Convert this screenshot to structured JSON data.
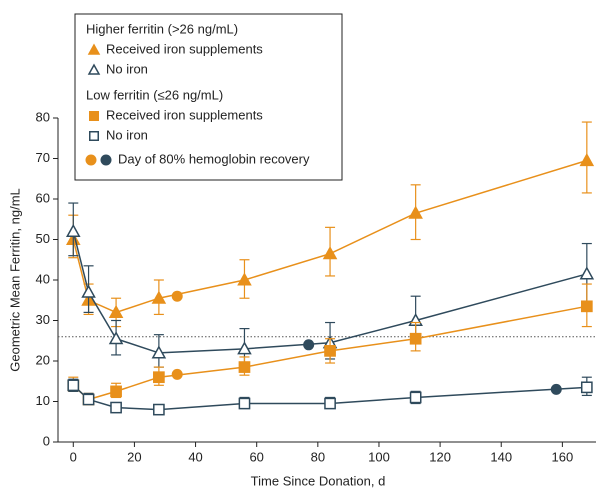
{
  "chart_data": {
    "type": "line",
    "xlabel": "Time Since Donation, d",
    "ylabel": "Geometric Mean Ferritin, ng/mL",
    "x": [
      0,
      5,
      14,
      28,
      56,
      84,
      112,
      168
    ],
    "xlim": [
      -5,
      171
    ],
    "xticks": [
      0,
      20,
      40,
      60,
      80,
      100,
      120,
      140,
      160
    ],
    "ylim": [
      0,
      80
    ],
    "yticks": [
      0,
      10,
      20,
      30,
      40,
      50,
      60,
      70,
      80
    ],
    "reference_line": 26,
    "groups": [
      {
        "title": "Higher ferritin (>26 ng/mL)",
        "series": [
          {
            "name": "Received iron supplements",
            "color": "#e8901b",
            "marker": "triangle",
            "filled": true,
            "values": [
              50,
              35,
              32,
              35.5,
              40,
              46.5,
              56.5,
              69.5
            ],
            "lower": [
              45.5,
              31.5,
              28.5,
              31.5,
              35.5,
              41,
              50,
              61.5
            ],
            "upper": [
              56,
              39,
              35.5,
              40,
              45,
              53,
              63.5,
              79
            ]
          },
          {
            "name": "No iron",
            "color": "#2f4a5c",
            "marker": "triangle",
            "filled": false,
            "values": [
              52,
              37,
              25.5,
              22,
              23,
              24.5,
              30,
              41.5
            ],
            "lower": [
              46,
              32,
              21.5,
              18.5,
              19.5,
              20.5,
              24.5,
              34.5
            ],
            "upper": [
              59,
              43.5,
              30,
              26.5,
              28,
              29.5,
              36,
              49
            ]
          }
        ]
      },
      {
        "title": "Low ferritin (≤26 ng/mL)",
        "series": [
          {
            "name": "Received iron supplements",
            "color": "#e8901b",
            "marker": "square",
            "filled": true,
            "values": [
              14,
              10.5,
              12.5,
              16,
              18.5,
              22.5,
              25.5,
              33.5
            ],
            "lower": [
              12.5,
              9.5,
              11,
              14,
              16.5,
              19.5,
              22.5,
              28.5
            ],
            "upper": [
              16,
              12,
              14.5,
              18.5,
              21,
              25.5,
              29.5,
              39
            ]
          },
          {
            "name": "No iron",
            "color": "#2f4a5c",
            "marker": "square",
            "filled": false,
            "values": [
              14,
              10.5,
              8.5,
              8,
              9.5,
              9.5,
              11,
              13.5
            ],
            "lower": [
              12.5,
              9.5,
              7.5,
              7,
              8.5,
              8.5,
              9.5,
              11.5
            ],
            "upper": [
              15.5,
              12,
              9.5,
              9,
              11,
              11,
              12.5,
              16
            ]
          }
        ]
      }
    ],
    "recovery": {
      "name": "Day of 80% hemoglobin recovery",
      "points": [
        {
          "x": 34,
          "y": 36,
          "color": "#e8901b"
        },
        {
          "x": 34,
          "y": 16.7,
          "color": "#e8901b"
        },
        {
          "x": 77,
          "y": 24,
          "color": "#2f4a5c"
        },
        {
          "x": 158,
          "y": 13,
          "color": "#2f4a5c"
        }
      ]
    }
  }
}
